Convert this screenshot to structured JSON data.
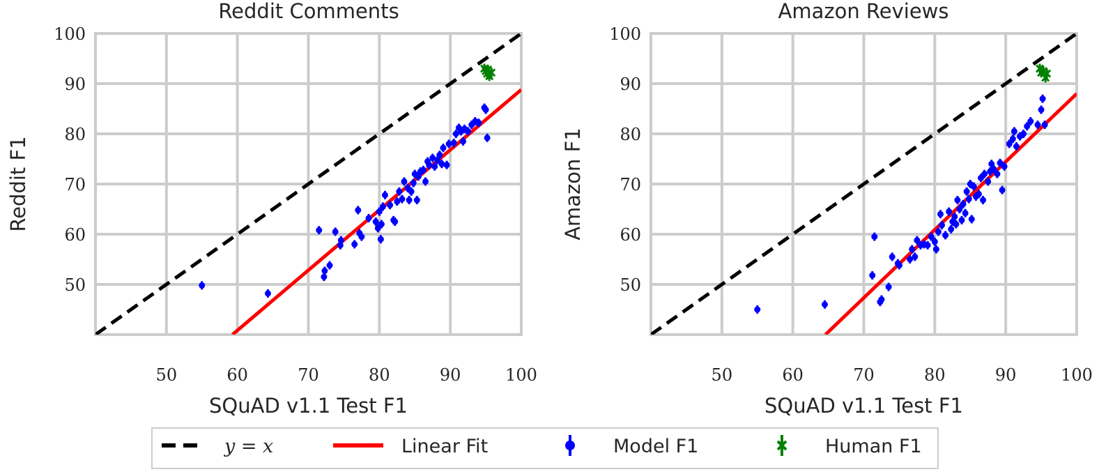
{
  "figure": {
    "legend": {
      "location": "bottom-center",
      "entries": [
        {
          "label": "y = x",
          "style": "dashed-line",
          "color": "#000000"
        },
        {
          "label": "Linear Fit",
          "style": "solid-line",
          "color": "#ff0000"
        },
        {
          "label": "Model F1",
          "style": "errorbar-marker",
          "color": "#0000ff"
        },
        {
          "label": "Human F1",
          "style": "errorbar-x-marker",
          "color": "#008000"
        }
      ]
    }
  },
  "chart_data": [
    {
      "type": "scatter",
      "title": "Reddit Comments",
      "xlabel": "SQuAD v1.1 Test F1",
      "ylabel": "Reddit F1",
      "xlim": [
        40,
        100
      ],
      "ylim": [
        40,
        100
      ],
      "xticks": [
        50,
        60,
        70,
        80,
        90,
        100
      ],
      "yticks": [
        50,
        60,
        70,
        80,
        90,
        100
      ],
      "grid": true,
      "reference_line": {
        "name": "y = x",
        "points": [
          [
            40,
            40
          ],
          [
            100,
            100
          ]
        ],
        "color": "#000000"
      },
      "fit_line": {
        "name": "Linear Fit",
        "points": [
          [
            59.3,
            40
          ],
          [
            100,
            88.8
          ]
        ],
        "color": "#ff0000"
      },
      "series": [
        {
          "name": "Model F1",
          "color": "#0000ff",
          "points": [
            [
              55.0,
              49.8
            ],
            [
              64.3,
              48.2
            ],
            [
              71.5,
              60.8
            ],
            [
              72.2,
              51.5
            ],
            [
              72.3,
              52.7
            ],
            [
              73.0,
              53.8
            ],
            [
              73.8,
              60.5
            ],
            [
              74.5,
              57.8
            ],
            [
              74.6,
              58.8
            ],
            [
              76.5,
              58.0
            ],
            [
              77.0,
              64.8
            ],
            [
              77.2,
              60.2
            ],
            [
              77.5,
              59.5
            ],
            [
              78.5,
              63.2
            ],
            [
              79.5,
              62.5
            ],
            [
              79.8,
              61.2
            ],
            [
              80.0,
              64.5
            ],
            [
              80.2,
              59.0
            ],
            [
              80.3,
              62.0
            ],
            [
              80.5,
              65.5
            ],
            [
              80.8,
              67.8
            ],
            [
              81.5,
              65.8
            ],
            [
              82.0,
              62.8
            ],
            [
              82.2,
              62.5
            ],
            [
              82.5,
              66.5
            ],
            [
              82.8,
              68.5
            ],
            [
              83.2,
              67.0
            ],
            [
              83.5,
              70.5
            ],
            [
              84.0,
              69.2
            ],
            [
              84.2,
              66.8
            ],
            [
              84.5,
              68.5
            ],
            [
              84.8,
              70.2
            ],
            [
              85.0,
              72.0
            ],
            [
              85.3,
              66.8
            ],
            [
              85.5,
              71.5
            ],
            [
              85.8,
              72.5
            ],
            [
              86.2,
              72.8
            ],
            [
              86.5,
              70.5
            ],
            [
              86.8,
              74.5
            ],
            [
              87.0,
              73.8
            ],
            [
              87.5,
              75.2
            ],
            [
              87.8,
              73.5
            ],
            [
              88.2,
              74.8
            ],
            [
              88.5,
              75.8
            ],
            [
              88.8,
              74.0
            ],
            [
              89.0,
              77.2
            ],
            [
              89.5,
              73.8
            ],
            [
              89.8,
              78.0
            ],
            [
              90.5,
              78.2
            ],
            [
              90.8,
              80.0
            ],
            [
              91.2,
              81.2
            ],
            [
              91.5,
              80.5
            ],
            [
              91.8,
              78.5
            ],
            [
              92.0,
              81.0
            ],
            [
              92.5,
              80.5
            ],
            [
              93.0,
              81.8
            ],
            [
              93.5,
              82.5
            ],
            [
              94.0,
              82.2
            ],
            [
              94.8,
              85.2
            ],
            [
              95.0,
              84.8
            ],
            [
              95.2,
              79.2
            ]
          ]
        },
        {
          "name": "Human F1",
          "color": "#008000",
          "points": [
            [
              94.8,
              93.0
            ],
            [
              95.0,
              92.5
            ],
            [
              95.2,
              92.0
            ],
            [
              95.5,
              91.5
            ],
            [
              95.8,
              92.2
            ],
            [
              95.3,
              92.8
            ]
          ]
        }
      ]
    },
    {
      "type": "scatter",
      "title": "Amazon Reviews",
      "xlabel": "SQuAD v1.1 Test F1",
      "ylabel": "Amazon F1",
      "xlim": [
        40,
        100
      ],
      "ylim": [
        40,
        100
      ],
      "xticks": [
        50,
        60,
        70,
        80,
        90,
        100
      ],
      "yticks": [
        50,
        60,
        70,
        80,
        90,
        100
      ],
      "grid": true,
      "reference_line": {
        "name": "y = x",
        "points": [
          [
            40,
            40
          ],
          [
            100,
            100
          ]
        ],
        "color": "#000000"
      },
      "fit_line": {
        "name": "Linear Fit",
        "points": [
          [
            64.6,
            40
          ],
          [
            100,
            88.0
          ]
        ],
        "color": "#ff0000"
      },
      "series": [
        {
          "name": "Model F1",
          "color": "#0000ff",
          "points": [
            [
              55.0,
              45.0
            ],
            [
              64.5,
              46.0
            ],
            [
              71.2,
              51.8
            ],
            [
              71.5,
              59.5
            ],
            [
              72.3,
              46.5
            ],
            [
              72.5,
              47.0
            ],
            [
              73.5,
              49.5
            ],
            [
              74.0,
              55.5
            ],
            [
              74.8,
              54.2
            ],
            [
              75.0,
              53.8
            ],
            [
              76.5,
              55.0
            ],
            [
              76.8,
              57.0
            ],
            [
              77.2,
              55.5
            ],
            [
              77.5,
              58.8
            ],
            [
              78.0,
              57.8
            ],
            [
              78.5,
              58.0
            ],
            [
              79.0,
              57.8
            ],
            [
              79.5,
              59.5
            ],
            [
              80.0,
              58.5
            ],
            [
              80.2,
              57.0
            ],
            [
              80.5,
              60.5
            ],
            [
              80.8,
              64.0
            ],
            [
              81.0,
              61.8
            ],
            [
              81.5,
              59.8
            ],
            [
              82.0,
              64.5
            ],
            [
              82.3,
              61.0
            ],
            [
              82.5,
              62.5
            ],
            [
              82.8,
              63.5
            ],
            [
              83.0,
              62.0
            ],
            [
              83.2,
              66.8
            ],
            [
              83.5,
              65.0
            ],
            [
              83.8,
              62.8
            ],
            [
              84.0,
              66.0
            ],
            [
              84.3,
              64.2
            ],
            [
              84.5,
              68.5
            ],
            [
              84.8,
              67.0
            ],
            [
              85.0,
              70.0
            ],
            [
              85.2,
              63.0
            ],
            [
              85.5,
              69.5
            ],
            [
              85.8,
              67.5
            ],
            [
              86.2,
              68.0
            ],
            [
              86.5,
              71.2
            ],
            [
              86.8,
              66.8
            ],
            [
              87.0,
              72.0
            ],
            [
              87.5,
              70.5
            ],
            [
              87.8,
              72.5
            ],
            [
              88.0,
              74.0
            ],
            [
              88.3,
              73.0
            ],
            [
              88.8,
              72.0
            ],
            [
              89.2,
              74.2
            ],
            [
              89.5,
              68.8
            ],
            [
              89.8,
              73.5
            ],
            [
              90.5,
              78.0
            ],
            [
              91.0,
              79.0
            ],
            [
              91.2,
              80.5
            ],
            [
              91.5,
              77.5
            ],
            [
              92.0,
              79.5
            ],
            [
              92.5,
              80.0
            ],
            [
              93.0,
              81.5
            ],
            [
              93.5,
              82.5
            ],
            [
              94.5,
              81.8
            ],
            [
              95.0,
              84.8
            ],
            [
              95.2,
              87.0
            ],
            [
              95.5,
              81.8
            ]
          ]
        },
        {
          "name": "Human F1",
          "color": "#008000",
          "points": [
            [
              94.8,
              93.0
            ],
            [
              95.0,
              92.2
            ],
            [
              95.3,
              92.5
            ],
            [
              95.6,
              91.2
            ],
            [
              95.8,
              92.0
            ]
          ]
        }
      ]
    }
  ]
}
